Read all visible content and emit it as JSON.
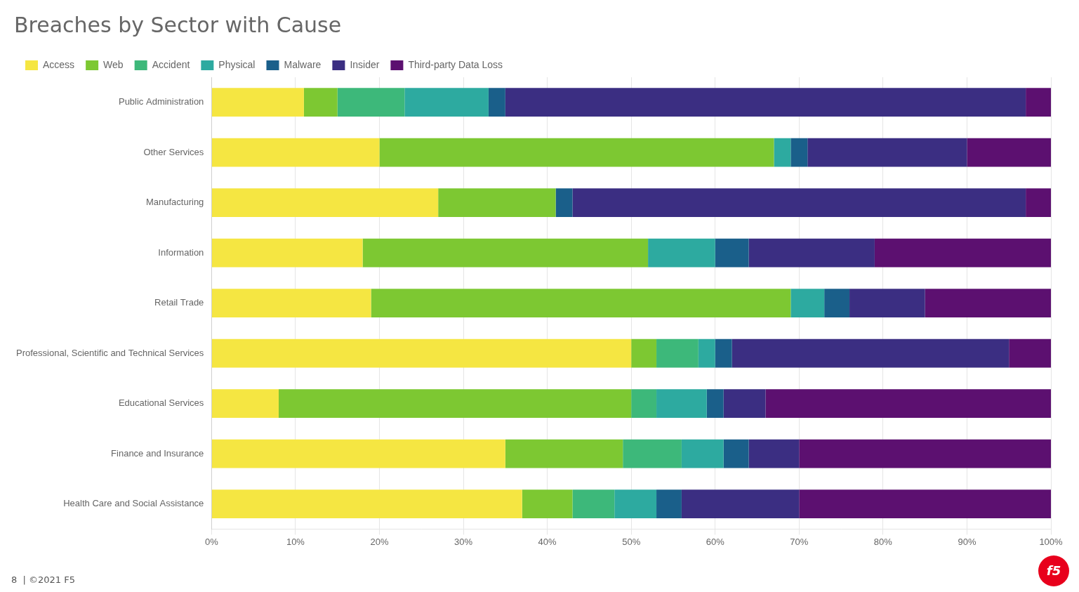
{
  "chart_data": {
    "type": "bar",
    "orientation": "horizontal",
    "stacked": true,
    "title": "Breaches by Sector with Cause",
    "categories": [
      "Public Administration",
      "Other Services",
      "Manufacturing",
      "Information",
      "Retail Trade",
      "Professional, Scientific and Technical Services",
      "Educational Services",
      "Finance and Insurance",
      "Health Care and Social Assistance"
    ],
    "series": [
      {
        "name": "Access",
        "color": "#f5e642",
        "values": [
          11,
          20,
          27,
          18,
          19,
          50,
          8,
          35,
          37
        ]
      },
      {
        "name": "Web",
        "color": "#7dc832",
        "values": [
          4,
          47,
          14,
          34,
          50,
          3,
          42,
          14,
          6
        ]
      },
      {
        "name": "Accident",
        "color": "#3db87a",
        "values": [
          8,
          0,
          0,
          0,
          0,
          5,
          3,
          7,
          5
        ]
      },
      {
        "name": "Physical",
        "color": "#2daaa0",
        "values": [
          10,
          2,
          0,
          8,
          4,
          2,
          6,
          5,
          5
        ]
      },
      {
        "name": "Malware",
        "color": "#1a5f8a",
        "values": [
          2,
          2,
          2,
          4,
          3,
          2,
          2,
          3,
          3
        ]
      },
      {
        "name": "Insider",
        "color": "#3b2e82",
        "values": [
          62,
          19,
          54,
          15,
          9,
          33,
          5,
          6,
          14
        ]
      },
      {
        "name": "Third-party Data Loss",
        "color": "#5c1070",
        "values": [
          3,
          10,
          3,
          21,
          15,
          5,
          34,
          30,
          30
        ]
      }
    ],
    "xlim": [
      0,
      100
    ],
    "xticks": [
      {
        "value": 0,
        "label": "0%"
      },
      {
        "value": 10,
        "label": "10%"
      },
      {
        "value": 20,
        "label": "20%"
      },
      {
        "value": 30,
        "label": "30%"
      },
      {
        "value": 40,
        "label": "40%"
      },
      {
        "value": 50,
        "label": "50%"
      },
      {
        "value": 60,
        "label": "60%"
      },
      {
        "value": 70,
        "label": "70%"
      },
      {
        "value": 80,
        "label": "80%"
      },
      {
        "value": 90,
        "label": "90%"
      },
      {
        "value": 100,
        "label": "100%"
      }
    ],
    "grid": true,
    "legend": "upper left",
    "annotations": [
      "8  | ©2021 F5",
      "f5"
    ]
  }
}
